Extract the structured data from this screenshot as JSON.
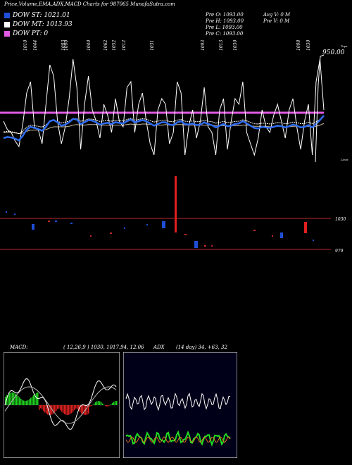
{
  "header": {
    "title": "Price,Volume,EMA,ADX,MACD Charts for 987065 MunafaSutra.com"
  },
  "legend": [
    {
      "label": "DOW ST: 1021.01",
      "color": "#1f4fd8"
    },
    {
      "label": "DOW MT: 1013.93",
      "color": "#ffffff"
    },
    {
      "label": "DOW PT: 0",
      "color": "#e25be6"
    }
  ],
  "stats": {
    "col1": [
      "Pre O: 1093.00",
      "Pre H: 1093.00",
      "Pre L: 1093.00",
      "Pre C: 1093.00"
    ],
    "col2": [
      "Avg V: 0 M",
      "Pre V: 0 M"
    ]
  },
  "price_labels": {
    "top": "950.00",
    "tops": "Tops",
    "lows": "Lows",
    "level_1030": "1030",
    "level_979": "979"
  },
  "date_labels": [
    "1010",
    "1044",
    "1093",
    "1090",
    "1040",
    "1062",
    "1052",
    "1012",
    "1031",
    "1093",
    "1013",
    "1030",
    "1098",
    "1030"
  ],
  "panels": {
    "macd_label": "MACD:",
    "macd_values": "( 12,26,9 ) 1030,  1017.94,  12.06",
    "adx_label": "ADX",
    "adx_values": "(14 day) 34,  +63,  32"
  },
  "chart_data": {
    "type": "line",
    "title": "Price,Volume,EMA,ADX,MACD Charts for 987065 MunafaSutra.com",
    "series": [
      {
        "name": "DOW ST",
        "color": "#1f4fd8",
        "last": 1021.01
      },
      {
        "name": "DOW MT",
        "color": "#ffffff",
        "last": 1013.93
      },
      {
        "name": "DOW PT",
        "color": "#e25be6",
        "last": 0
      }
    ],
    "price_line": [
      1060,
      1045,
      1040,
      1025,
      1015,
      1055,
      1110,
      1130,
      1050,
      1045,
      1020,
      1090,
      1160,
      1140,
      1060,
      1020,
      1050,
      1100,
      1170,
      1120,
      1010,
      1090,
      1140,
      1080,
      1060,
      1030,
      1090,
      1070,
      1040,
      1100,
      1060,
      1050,
      1120,
      1130,
      1040,
      1090,
      1110,
      1060,
      1020,
      1000,
      1080,
      1100,
      1090,
      1020,
      1040,
      1130,
      1110,
      1000,
      1050,
      1080,
      1030,
      1060,
      1120,
      1050,
      1040,
      1000,
      1080,
      1100,
      1010,
      1060,
      1100,
      1090,
      1130,
      1040,
      1020,
      1000,
      1030,
      1080,
      1050,
      1040,
      1070,
      1090,
      1060,
      1030,
      1080,
      1100,
      1050,
      1010,
      1060,
      1090,
      1000,
      1130,
      1170,
      1080
    ],
    "ema_fast": [
      1030,
      1032,
      1031,
      1029,
      1026,
      1034,
      1045,
      1050,
      1048,
      1046,
      1043,
      1050,
      1060,
      1062,
      1058,
      1052,
      1054,
      1058,
      1064,
      1063,
      1055,
      1058,
      1062,
      1061,
      1058,
      1054,
      1056,
      1057,
      1055,
      1058,
      1057,
      1056,
      1060,
      1063,
      1058,
      1060,
      1062,
      1060,
      1056,
      1052,
      1055,
      1058,
      1058,
      1054,
      1053,
      1058,
      1060,
      1055,
      1054,
      1056,
      1053,
      1054,
      1058,
      1055,
      1053,
      1049,
      1052,
      1055,
      1051,
      1052,
      1055,
      1056,
      1060,
      1056,
      1052,
      1048,
      1047,
      1050,
      1049,
      1048,
      1050,
      1052,
      1051,
      1049,
      1051,
      1054,
      1052,
      1049,
      1050,
      1053,
      1049,
      1055,
      1062,
      1070
    ],
    "ema_slow": [
      1040,
      1040,
      1040,
      1039,
      1038,
      1039,
      1042,
      1044,
      1044,
      1044,
      1044,
      1045,
      1048,
      1050,
      1050,
      1050,
      1050,
      1051,
      1053,
      1054,
      1053,
      1053,
      1054,
      1054,
      1054,
      1053,
      1053,
      1053,
      1053,
      1053,
      1053,
      1053,
      1054,
      1055,
      1054,
      1054,
      1055,
      1055,
      1054,
      1053,
      1053,
      1053,
      1054,
      1053,
      1053,
      1054,
      1054,
      1053,
      1053,
      1053,
      1053,
      1053,
      1053,
      1053,
      1053,
      1052,
      1052,
      1052,
      1052,
      1052,
      1052,
      1052,
      1053,
      1053,
      1052,
      1051,
      1051,
      1051,
      1051,
      1050,
      1050,
      1051,
      1051,
      1050,
      1050,
      1051,
      1051,
      1050,
      1050,
      1051,
      1050,
      1051,
      1053,
      1056
    ],
    "resistance_level": 1095,
    "ylim": [
      1200,
      900
    ]
  }
}
